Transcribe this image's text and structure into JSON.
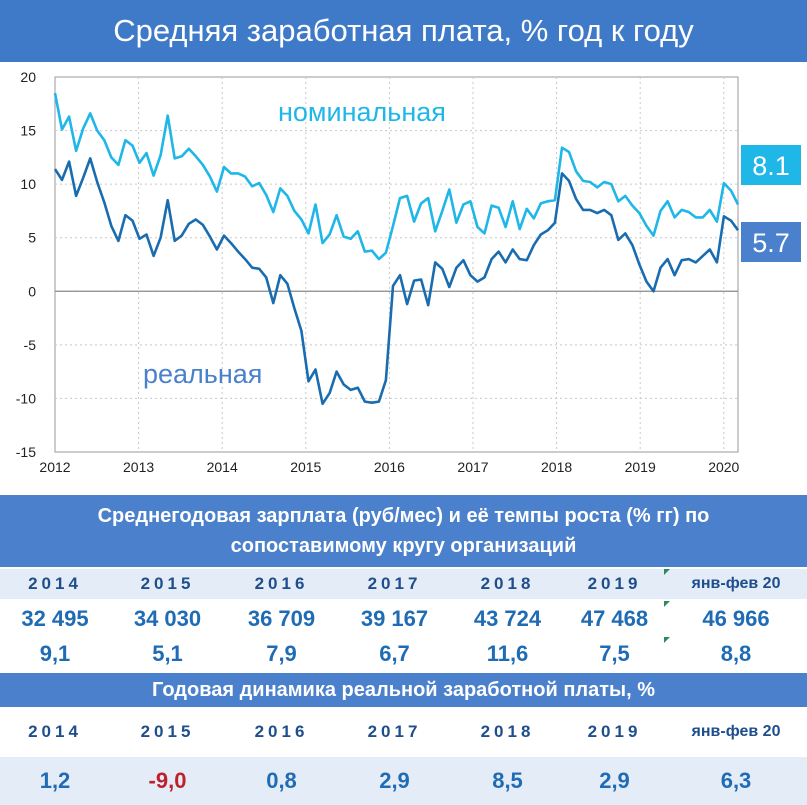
{
  "header": {
    "title": "Средняя заработная плата, % год к году"
  },
  "chart_data": {
    "type": "line",
    "title": "Средняя заработная плата, % год к году",
    "xlabel": "",
    "ylabel": "",
    "ylim": [
      -15,
      20
    ],
    "xlim": [
      2012.0,
      2020.17
    ],
    "yticks": [
      "20",
      "15",
      "10",
      "5",
      "0",
      "-5",
      "-10",
      "-15"
    ],
    "xticks": [
      "2012",
      "2013",
      "2014",
      "2015",
      "2016",
      "2017",
      "2018",
      "2019",
      "2020"
    ],
    "grid": true,
    "series": [
      {
        "name": "номинальная",
        "color": "#1fb6e8",
        "end_label": "8.1",
        "values": [
          18.5,
          15.1,
          16.3,
          13.1,
          15.2,
          16.6,
          15.0,
          14.1,
          12.5,
          11.8,
          14.1,
          13.6,
          12.0,
          12.9,
          10.8,
          12.7,
          16.4,
          12.4,
          12.6,
          13.3,
          12.6,
          11.8,
          10.7,
          9.3,
          11.6,
          11.0,
          11.0,
          10.7,
          9.8,
          10.1,
          9.0,
          7.4,
          9.6,
          8.9,
          7.5,
          6.7,
          5.4,
          8.1,
          4.5,
          5.3,
          7.1,
          5.1,
          4.9,
          5.6,
          3.7,
          3.8,
          3.0,
          3.6,
          6.1,
          8.7,
          8.9,
          6.5,
          8.2,
          8.7,
          5.6,
          7.5,
          9.5,
          6.4,
          8.1,
          8.4,
          6.0,
          5.4,
          8.0,
          7.8,
          6.0,
          8.4,
          5.8,
          7.7,
          6.8,
          8.2,
          8.4,
          8.5,
          13.4,
          13.0,
          11.2,
          10.3,
          10.2,
          9.7,
          10.2,
          10.0,
          8.4,
          8.9,
          8.0,
          7.3,
          6.1,
          5.2,
          7.5,
          8.4,
          6.9,
          7.6,
          7.4,
          6.9,
          6.9,
          7.6,
          6.5,
          10.1,
          9.4,
          8.1
        ]
      },
      {
        "name": "реальная",
        "color": "#1a6cb0",
        "end_label": "5.7",
        "values": [
          11.4,
          10.4,
          12.1,
          8.9,
          10.6,
          12.4,
          10.2,
          8.3,
          6.1,
          4.7,
          7.1,
          6.6,
          4.9,
          5.3,
          3.3,
          5.0,
          8.5,
          4.7,
          5.2,
          6.3,
          6.7,
          6.2,
          5.1,
          3.9,
          5.2,
          4.5,
          3.7,
          3.0,
          2.2,
          2.1,
          1.3,
          -1.1,
          1.5,
          0.7,
          -1.6,
          -3.7,
          -8.4,
          -7.3,
          -10.5,
          -9.5,
          -7.5,
          -8.7,
          -9.2,
          -9.0,
          -10.3,
          -10.4,
          -10.3,
          -8.3,
          0.5,
          1.5,
          -1.2,
          1.0,
          1.1,
          -1.3,
          2.7,
          2.1,
          0.4,
          2.2,
          2.9,
          1.5,
          0.9,
          1.3,
          3.0,
          3.7,
          2.7,
          3.9,
          3.0,
          2.9,
          4.3,
          5.3,
          5.7,
          6.4,
          11.0,
          10.3,
          8.6,
          7.6,
          7.6,
          7.3,
          7.6,
          7.1,
          4.8,
          5.4,
          4.3,
          2.5,
          0.9,
          0.0,
          2.2,
          3.0,
          1.5,
          2.9,
          3.0,
          2.7,
          3.3,
          3.9,
          2.7,
          7.0,
          6.6,
          5.7
        ]
      }
    ]
  },
  "table": {
    "section1_title_line1": "Среднегодовая зарплата (руб/мес) и её темпы роста (% гг)  по",
    "section1_title_line2": "сопоставимому кругу организаций",
    "years": [
      "2014",
      "2015",
      "2016",
      "2017",
      "2018",
      "2019",
      "янв-фев 20"
    ],
    "salary": [
      "32 495",
      "34 030",
      "36 709",
      "39 167",
      "43 724",
      "47 468",
      "46 966"
    ],
    "growth": [
      "9,1",
      "5,1",
      "7,9",
      "6,7",
      "11,6",
      "7,5",
      "8,8"
    ],
    "section2_title": "Годовая динамика реальной заработной платы, %",
    "years2": [
      "2014",
      "2015",
      "2016",
      "2017",
      "2018",
      "2019",
      "янв-фев 20"
    ],
    "real": [
      "1,2",
      "-9,0",
      "0,8",
      "2,9",
      "8,5",
      "2,9",
      "6,3"
    ]
  }
}
